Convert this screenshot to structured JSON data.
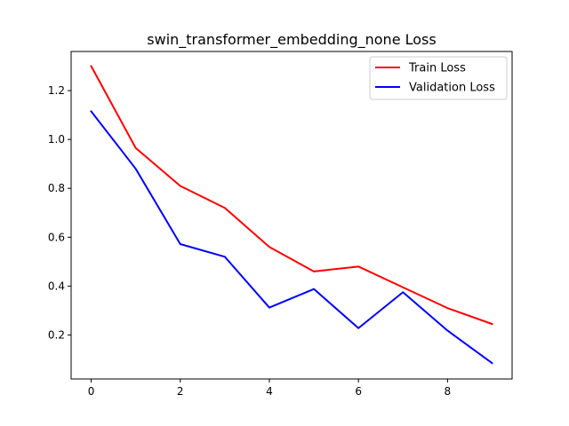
{
  "chart_data": {
    "type": "line",
    "title": "swin_transformer_embedding_none Loss",
    "xlabel": "",
    "ylabel": "",
    "x": [
      0,
      1,
      2,
      3,
      4,
      5,
      6,
      7,
      8,
      9
    ],
    "xlim": [
      -0.45,
      9.45
    ],
    "ylim": [
      0.02,
      1.36
    ],
    "x_ticks": [
      0,
      2,
      4,
      6,
      8
    ],
    "x_tick_labels": [
      "0",
      "2",
      "4",
      "6",
      "8"
    ],
    "y_ticks": [
      0.2,
      0.4,
      0.6,
      0.8,
      1.0,
      1.2
    ],
    "y_tick_labels": [
      "0.2",
      "0.4",
      "0.6",
      "0.8",
      "1.0",
      "1.2"
    ],
    "grid": false,
    "legend_position": "top-right",
    "series": [
      {
        "name": "Train Loss",
        "color": "#ff0000",
        "values": [
          1.3,
          0.965,
          0.81,
          0.72,
          0.56,
          0.46,
          0.48,
          0.395,
          0.31,
          0.245
        ]
      },
      {
        "name": "Validation Loss",
        "color": "#0000ff",
        "values": [
          1.115,
          0.88,
          0.572,
          0.52,
          0.312,
          0.388,
          0.228,
          0.375,
          0.218,
          0.085
        ]
      }
    ]
  }
}
